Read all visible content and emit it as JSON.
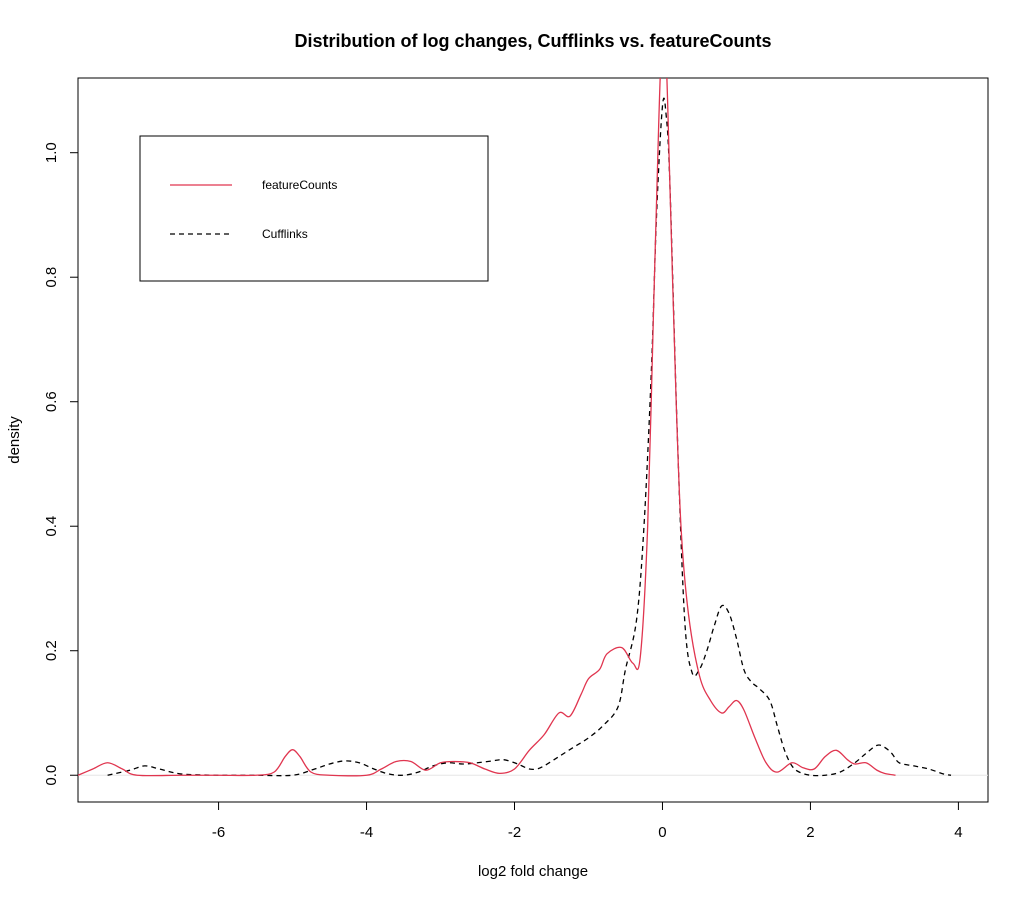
{
  "chart_data": {
    "type": "line",
    "title": "Distribution of log changes, Cufflinks vs. featureCounts",
    "xlabel": "log2 fold change",
    "ylabel": "density",
    "xlim": [
      -7.9,
      4.4
    ],
    "ylim": [
      -0.043,
      1.12
    ],
    "x_ticks": [
      -6,
      -4,
      -2,
      0,
      2,
      4
    ],
    "y_ticks": [
      0.0,
      0.2,
      0.4,
      0.6,
      0.8,
      1.0
    ],
    "x_tick_labels": [
      "-6",
      "-4",
      "-2",
      "0",
      "2",
      "4"
    ],
    "y_tick_labels": [
      "0.0",
      "0.2",
      "0.4",
      "0.6",
      "0.8",
      "1.0"
    ],
    "grid": false,
    "legend_position": "top-left",
    "series": [
      {
        "name": "featureCounts",
        "color": "#e0354f",
        "dash": "solid",
        "x": [
          -7.9,
          -7.7,
          -7.5,
          -7.3,
          -7.1,
          -6.5,
          -6.0,
          -5.5,
          -5.25,
          -5.1,
          -5.0,
          -4.9,
          -4.75,
          -4.5,
          -4.0,
          -3.8,
          -3.6,
          -3.4,
          -3.2,
          -3.0,
          -2.8,
          -2.6,
          -2.4,
          -2.2,
          -2.0,
          -1.8,
          -1.6,
          -1.4,
          -1.25,
          -1.1,
          -1.0,
          -0.85,
          -0.75,
          -0.55,
          -0.4,
          -0.3,
          -0.2,
          -0.12,
          -0.05,
          0.0,
          0.05,
          0.1,
          0.18,
          0.25,
          0.35,
          0.5,
          0.65,
          0.8,
          0.9,
          1.0,
          1.1,
          1.25,
          1.4,
          1.55,
          1.75,
          1.9,
          2.05,
          2.2,
          2.35,
          2.5,
          2.6,
          2.75,
          2.9,
          3.0,
          3.15
        ],
        "y": [
          0.0,
          0.01,
          0.02,
          0.01,
          0.0,
          0.0,
          0.0,
          0.0,
          0.005,
          0.03,
          0.041,
          0.03,
          0.005,
          0.0,
          0.0,
          0.01,
          0.022,
          0.022,
          0.008,
          0.02,
          0.022,
          0.02,
          0.01,
          0.003,
          0.01,
          0.04,
          0.065,
          0.1,
          0.095,
          0.13,
          0.155,
          0.17,
          0.195,
          0.205,
          0.18,
          0.19,
          0.4,
          0.75,
          1.05,
          1.2,
          1.15,
          0.95,
          0.62,
          0.4,
          0.26,
          0.16,
          0.12,
          0.1,
          0.11,
          0.12,
          0.105,
          0.06,
          0.02,
          0.005,
          0.02,
          0.012,
          0.01,
          0.03,
          0.04,
          0.025,
          0.018,
          0.02,
          0.008,
          0.003,
          0.0
        ]
      },
      {
        "name": "Cufflinks",
        "color": "#000000",
        "dash": "dashed",
        "x": [
          -7.5,
          -7.2,
          -7.0,
          -6.8,
          -6.5,
          -6.0,
          -5.5,
          -5.0,
          -4.7,
          -4.5,
          -4.3,
          -4.1,
          -3.9,
          -3.7,
          -3.5,
          -3.3,
          -3.1,
          -2.9,
          -2.7,
          -2.5,
          -2.3,
          -2.15,
          -2.0,
          -1.9,
          -1.8,
          -1.7,
          -1.6,
          -1.4,
          -1.2,
          -1.0,
          -0.8,
          -0.6,
          -0.5,
          -0.35,
          -0.25,
          -0.15,
          -0.08,
          0.0,
          0.05,
          0.1,
          0.2,
          0.3,
          0.4,
          0.5,
          0.6,
          0.7,
          0.8,
          0.9,
          1.0,
          1.1,
          1.2,
          1.3,
          1.45,
          1.55,
          1.65,
          1.75,
          1.85,
          2.0,
          2.2,
          2.4,
          2.6,
          2.75,
          2.9,
          3.0,
          3.1,
          3.2,
          3.4,
          3.6,
          3.8,
          3.9
        ],
        "y": [
          0.0,
          0.008,
          0.015,
          0.01,
          0.002,
          0.0,
          0.0,
          0.0,
          0.01,
          0.018,
          0.023,
          0.02,
          0.01,
          0.002,
          0.0,
          0.005,
          0.015,
          0.02,
          0.018,
          0.02,
          0.023,
          0.025,
          0.02,
          0.015,
          0.01,
          0.01,
          0.015,
          0.03,
          0.045,
          0.06,
          0.08,
          0.11,
          0.17,
          0.25,
          0.4,
          0.65,
          0.9,
          1.075,
          1.06,
          0.95,
          0.55,
          0.25,
          0.165,
          0.17,
          0.2,
          0.24,
          0.272,
          0.26,
          0.22,
          0.17,
          0.15,
          0.14,
          0.12,
          0.08,
          0.04,
          0.015,
          0.005,
          0.0,
          0.0,
          0.005,
          0.02,
          0.035,
          0.048,
          0.045,
          0.035,
          0.02,
          0.015,
          0.01,
          0.002,
          0.0
        ]
      }
    ]
  }
}
